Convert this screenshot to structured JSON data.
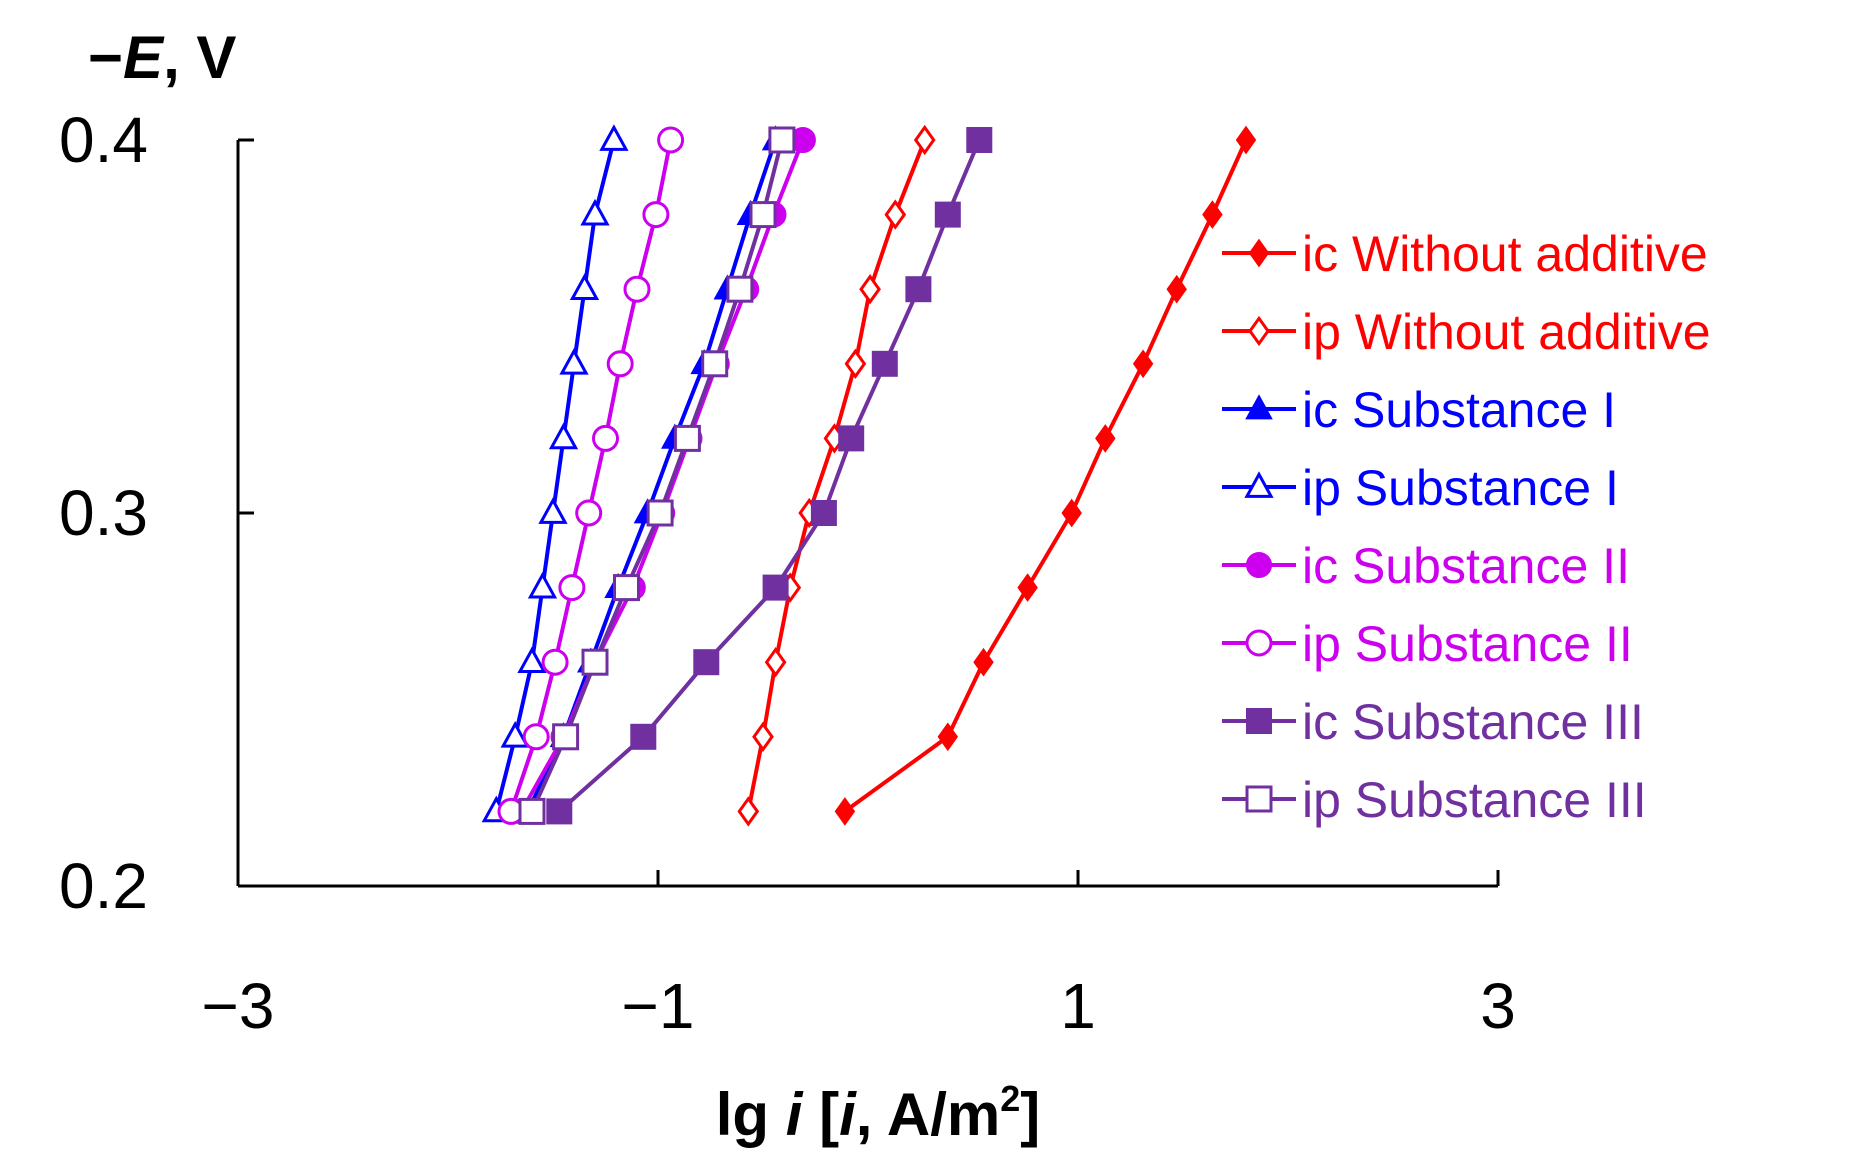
{
  "chart_data": {
    "type": "scatter",
    "title": "",
    "ylabel": {
      "sign": "−",
      "var": "E",
      "unit": ", V"
    },
    "xlabel": {
      "pre": "lg ",
      "var1": "i",
      "mid": " [",
      "var2": "i",
      "post": ", A/m",
      "sup": "2",
      "close": "]"
    },
    "xlim": [
      -3,
      3
    ],
    "ylim": [
      0.2,
      0.4
    ],
    "xticks": [
      -3,
      -1,
      1,
      3
    ],
    "xtick_labels": [
      "−3",
      "−1",
      "1",
      "3"
    ],
    "yticks": [
      0.2,
      0.3,
      0.4
    ],
    "ytick_labels": [
      "0.2",
      "0.3",
      "0.4"
    ],
    "grid": false,
    "legend_position": "right",
    "series": [
      {
        "name": "ic Without additive",
        "color": "#ff0000",
        "marker": "diamond",
        "filled": true,
        "x": [
          -0.11,
          0.38,
          0.55,
          0.76,
          0.97,
          1.13,
          1.31,
          1.47,
          1.64,
          1.8
        ],
        "y": [
          0.22,
          0.24,
          0.26,
          0.28,
          0.3,
          0.32,
          0.34,
          0.36,
          0.38,
          0.4
        ]
      },
      {
        "name": "ip Without additive",
        "color": "#ff0000",
        "marker": "diamond",
        "filled": false,
        "x": [
          -0.57,
          -0.5,
          -0.44,
          -0.37,
          -0.28,
          -0.16,
          -0.06,
          0.01,
          0.13,
          0.27
        ],
        "y": [
          0.22,
          0.24,
          0.26,
          0.28,
          0.3,
          0.32,
          0.34,
          0.36,
          0.38,
          0.4
        ]
      },
      {
        "name": "ic Substance I",
        "color": "#0000ff",
        "marker": "triangle",
        "filled": true,
        "x": [
          -1.62,
          -1.45,
          -1.32,
          -1.19,
          -1.05,
          -0.92,
          -0.78,
          -0.67,
          -0.56,
          -0.44
        ],
        "y": [
          0.22,
          0.24,
          0.26,
          0.28,
          0.3,
          0.32,
          0.34,
          0.36,
          0.38,
          0.4
        ]
      },
      {
        "name": "ip Substance I",
        "color": "#0000ff",
        "marker": "triangle",
        "filled": false,
        "x": [
          -1.77,
          -1.68,
          -1.6,
          -1.55,
          -1.5,
          -1.45,
          -1.4,
          -1.35,
          -1.3,
          -1.21
        ],
        "y": [
          0.22,
          0.24,
          0.26,
          0.28,
          0.3,
          0.32,
          0.34,
          0.36,
          0.38,
          0.4
        ]
      },
      {
        "name": "ic Substance II",
        "color": "#cc00ee",
        "marker": "circle",
        "filled": true,
        "x": [
          -1.65,
          -1.45,
          -1.3,
          -1.12,
          -0.98,
          -0.85,
          -0.72,
          -0.58,
          -0.45,
          -0.31
        ],
        "y": [
          0.22,
          0.24,
          0.26,
          0.28,
          0.3,
          0.32,
          0.34,
          0.36,
          0.38,
          0.4
        ]
      },
      {
        "name": "ip Substance II",
        "color": "#cc00ee",
        "marker": "circle",
        "filled": false,
        "x": [
          -1.7,
          -1.58,
          -1.49,
          -1.41,
          -1.33,
          -1.25,
          -1.18,
          -1.1,
          -1.01,
          -0.94
        ],
        "y": [
          0.22,
          0.24,
          0.26,
          0.28,
          0.3,
          0.32,
          0.34,
          0.36,
          0.38,
          0.4
        ]
      },
      {
        "name": "ic Substance III",
        "color": "#7030a0",
        "marker": "square",
        "filled": true,
        "x": [
          -1.47,
          -1.07,
          -0.77,
          -0.44,
          -0.21,
          -0.08,
          0.08,
          0.24,
          0.38,
          0.53
        ],
        "y": [
          0.22,
          0.24,
          0.26,
          0.28,
          0.3,
          0.32,
          0.34,
          0.36,
          0.38,
          0.4
        ]
      },
      {
        "name": "ip Substance III",
        "color": "#7030a0",
        "marker": "square",
        "filled": false,
        "x": [
          -1.6,
          -1.44,
          -1.3,
          -1.15,
          -0.99,
          -0.86,
          -0.73,
          -0.61,
          -0.5,
          -0.41
        ],
        "y": [
          0.22,
          0.24,
          0.26,
          0.28,
          0.3,
          0.32,
          0.34,
          0.36,
          0.38,
          0.4
        ]
      }
    ]
  }
}
